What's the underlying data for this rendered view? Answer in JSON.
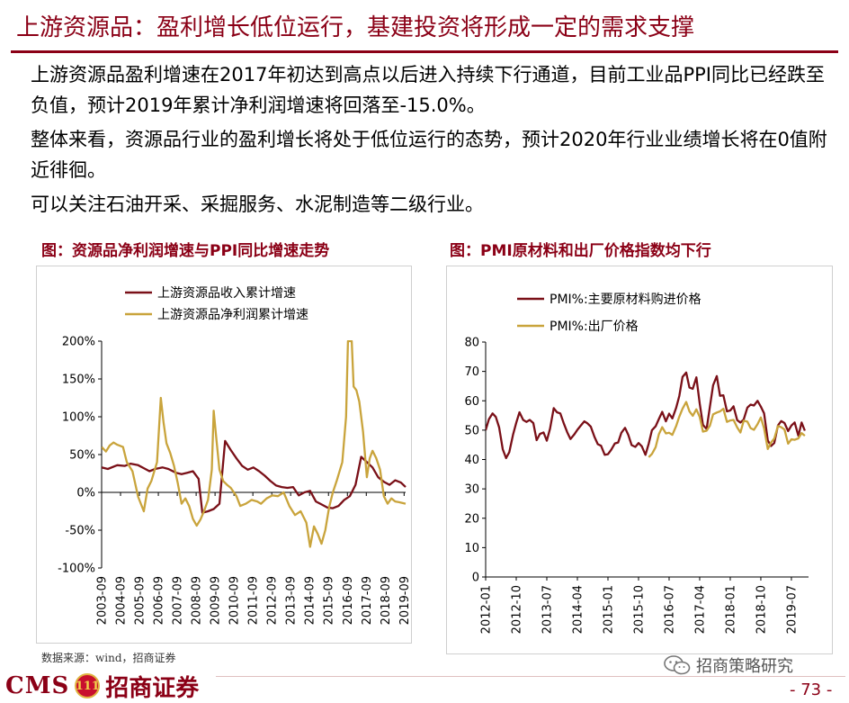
{
  "header": {
    "title": "上游资源品：盈利增长低位运行，基建投资将形成一定的需求支撑"
  },
  "bullets": [
    "上游资源品盈利增速在2017年初达到高点以后进入持续下行通道，目前工业品PPI同比已经跌至负值，预计2019年累计净利润增速将回落至-15.0%。",
    "整体来看，资源品行业的盈利增长将处于低位运行的态势，预计2020年行业业绩增长将在0值附近徘徊。",
    "可以关注石油开采、采掘服务、水泥制造等二级行业。"
  ],
  "source": "数据来源：wind，招商证券",
  "footer": {
    "logo_cms": "CMS",
    "logo_emblem": "111",
    "logo_cn": "招商证券",
    "wechat": "招商策略研究",
    "page_number": "- 73 -"
  },
  "colors": {
    "brand": "#8b0016",
    "series_dark": "#7a1018",
    "series_gold": "#c9a43c"
  },
  "chart_data": [
    {
      "type": "line",
      "figure_title": "图：资源品净利润增速与PPI同比增速走势",
      "ylim": [
        -100,
        200
      ],
      "yticks": [
        -100,
        -50,
        0,
        50,
        100,
        150,
        200
      ],
      "ytick_labels": [
        "-100%",
        "-50%",
        "0%",
        "50%",
        "100%",
        "150%",
        "200%"
      ],
      "xlim": [
        2003.67,
        2019.75
      ],
      "xtick_labels": [
        "2003-09",
        "2004-09",
        "2005-09",
        "2006-09",
        "2007-09",
        "2008-09",
        "2009-09",
        "2010-09",
        "2011-09",
        "2012-09",
        "2013-09",
        "2014-09",
        "2015-09",
        "2016-09",
        "2017-09",
        "2018-09",
        "2019-09"
      ],
      "xticks": [
        2003.67,
        2004.67,
        2005.67,
        2006.67,
        2007.67,
        2008.67,
        2009.67,
        2010.67,
        2011.67,
        2012.67,
        2013.67,
        2014.67,
        2015.67,
        2016.67,
        2017.67,
        2018.67,
        2019.67
      ],
      "legend_position": "top-left",
      "series": [
        {
          "name": "上游资源品收入累计增速",
          "color": "#7a1018",
          "x": [
            2003.67,
            2004.0,
            2004.5,
            2004.9,
            2005.2,
            2005.6,
            2005.9,
            2006.2,
            2006.5,
            2006.9,
            2007.2,
            2007.6,
            2007.9,
            2008.2,
            2008.5,
            2008.8,
            2009.0,
            2009.3,
            2009.6,
            2009.9,
            2010.2,
            2010.5,
            2010.8,
            2011.1,
            2011.4,
            2011.7,
            2012.0,
            2012.3,
            2012.6,
            2012.9,
            2013.2,
            2013.5,
            2013.8,
            2014.1,
            2014.4,
            2014.7,
            2015.0,
            2015.3,
            2015.6,
            2015.9,
            2016.2,
            2016.5,
            2016.8,
            2017.1,
            2017.4,
            2017.7,
            2018.0,
            2018.3,
            2018.6,
            2018.9,
            2019.2,
            2019.5,
            2019.75
          ],
          "y": [
            33,
            31,
            36,
            35,
            38,
            36,
            32,
            28,
            31,
            33,
            31,
            26,
            24,
            26,
            28,
            18,
            -27,
            -25,
            -22,
            -15,
            68,
            56,
            45,
            35,
            30,
            33,
            28,
            22,
            15,
            9,
            7,
            6,
            7,
            -4,
            0,
            2,
            -12,
            -16,
            -20,
            -21,
            -18,
            -10,
            -5,
            10,
            47,
            40,
            33,
            20,
            14,
            10,
            16,
            13,
            7
          ]
        },
        {
          "name": "上游资源品净利润累计增速",
          "color": "#c9a43c",
          "x": [
            2003.67,
            2003.9,
            2004.1,
            2004.3,
            2004.5,
            2004.8,
            2005.0,
            2005.3,
            2005.6,
            2005.9,
            2006.1,
            2006.3,
            2006.6,
            2006.8,
            2006.95,
            2007.1,
            2007.3,
            2007.5,
            2007.7,
            2007.9,
            2008.1,
            2008.3,
            2008.5,
            2008.7,
            2008.9,
            2009.1,
            2009.3,
            2009.5,
            2009.6,
            2009.75,
            2009.9,
            2010.1,
            2010.3,
            2010.5,
            2010.8,
            2011.0,
            2011.3,
            2011.6,
            2011.9,
            2012.1,
            2012.4,
            2012.7,
            2013.0,
            2013.3,
            2013.6,
            2013.9,
            2014.2,
            2014.5,
            2014.7,
            2014.9,
            2015.1,
            2015.3,
            2015.5,
            2015.7,
            2015.9,
            2016.1,
            2016.4,
            2016.6,
            2016.7,
            2016.8,
            2016.9,
            2017.0,
            2017.15,
            2017.3,
            2017.5,
            2017.7,
            2017.85,
            2018.0,
            2018.2,
            2018.4,
            2018.6,
            2018.8,
            2019.0,
            2019.2,
            2019.4,
            2019.75
          ],
          "y": [
            60,
            54,
            62,
            66,
            63,
            60,
            40,
            28,
            -6,
            -25,
            5,
            15,
            40,
            125,
            92,
            65,
            52,
            35,
            12,
            -15,
            -8,
            -18,
            -35,
            -44,
            -36,
            -24,
            -10,
            30,
            108,
            68,
            30,
            15,
            10,
            6,
            -5,
            -18,
            -15,
            -10,
            -12,
            -15,
            -8,
            -4,
            -5,
            0,
            -18,
            -30,
            -25,
            -40,
            -72,
            -45,
            -55,
            -68,
            -50,
            -20,
            0,
            15,
            40,
            100,
            200,
            200,
            200,
            140,
            135,
            120,
            80,
            20,
            45,
            55,
            45,
            30,
            -5,
            -15,
            -8,
            -12,
            -13,
            -15
          ]
        }
      ]
    },
    {
      "type": "line",
      "figure_title": "图：PMI原材料和出厂价格指数均下行",
      "ylim": [
        0,
        80
      ],
      "yticks": [
        0,
        10,
        20,
        30,
        40,
        50,
        60,
        70,
        80
      ],
      "ytick_labels": [
        "0",
        "10",
        "20",
        "30",
        "40",
        "50",
        "60",
        "70",
        "80"
      ],
      "xlim": [
        2012.0,
        2019.92
      ],
      "xtick_labels": [
        "2012-01",
        "2012-10",
        "2013-07",
        "2014-04",
        "2015-01",
        "2015-10",
        "2016-07",
        "2017-04",
        "2018-01",
        "2018-10",
        "2019-07"
      ],
      "xticks": [
        2012.0,
        2012.75,
        2013.5,
        2014.25,
        2015.0,
        2015.75,
        2016.5,
        2017.25,
        2018.0,
        2018.75,
        2019.5
      ],
      "legend_position": "top-left",
      "series": [
        {
          "name": "PMI%:主要原材料购进价格",
          "color": "#7a1018",
          "x": [
            2012.0,
            2012.08,
            2012.17,
            2012.25,
            2012.33,
            2012.42,
            2012.5,
            2012.58,
            2012.67,
            2012.75,
            2012.83,
            2012.92,
            2013.0,
            2013.08,
            2013.17,
            2013.25,
            2013.33,
            2013.42,
            2013.5,
            2013.58,
            2013.67,
            2013.75,
            2013.83,
            2013.92,
            2014.0,
            2014.08,
            2014.17,
            2014.25,
            2014.33,
            2014.42,
            2014.5,
            2014.58,
            2014.67,
            2014.75,
            2014.83,
            2014.92,
            2015.0,
            2015.08,
            2015.17,
            2015.25,
            2015.33,
            2015.42,
            2015.5,
            2015.58,
            2015.67,
            2015.75,
            2015.83,
            2015.92,
            2016.0,
            2016.08,
            2016.17,
            2016.25,
            2016.33,
            2016.42,
            2016.5,
            2016.58,
            2016.67,
            2016.75,
            2016.83,
            2016.92,
            2017.0,
            2017.08,
            2017.17,
            2017.25,
            2017.33,
            2017.42,
            2017.5,
            2017.58,
            2017.67,
            2017.75,
            2017.83,
            2017.92,
            2018.0,
            2018.08,
            2018.17,
            2018.25,
            2018.33,
            2018.42,
            2018.5,
            2018.58,
            2018.67,
            2018.75,
            2018.83,
            2018.92,
            2019.0,
            2019.08,
            2019.17,
            2019.25,
            2019.33,
            2019.42,
            2019.5,
            2019.58,
            2019.67,
            2019.75,
            2019.83
          ],
          "y": [
            50.0,
            53.7,
            55.7,
            54.5,
            50.9,
            43.5,
            40.5,
            42.5,
            48.4,
            52.5,
            56.1,
            53.5,
            52.8,
            53.5,
            52.4,
            46.6,
            48.7,
            49.2,
            46.4,
            50.5,
            57.5,
            56.1,
            55.7,
            52.2,
            49.3,
            47.0,
            48.5,
            50.1,
            51.5,
            53.0,
            52.3,
            51.2,
            47.7,
            45.2,
            44.7,
            41.6,
            41.8,
            43.3,
            45.5,
            45.8,
            49.1,
            50.8,
            48.4,
            44.9,
            44.3,
            45.6,
            44.5,
            41.6,
            45.4,
            50.0,
            51.3,
            53.8,
            56.2,
            53.0,
            55.6,
            54.0,
            57.5,
            61.6,
            68.1,
            69.6,
            64.5,
            64.1,
            68.0,
            59.1,
            51.8,
            50.4,
            57.9,
            65.3,
            68.4,
            61.7,
            61.9,
            56.4,
            56.7,
            58.1,
            53.4,
            52.6,
            53.6,
            57.7,
            58.7,
            58.4,
            60.0,
            58.0,
            55.7,
            46.5,
            44.6,
            45.6,
            51.6,
            53.1,
            52.4,
            49.7,
            51.6,
            52.6,
            48.1,
            52.6,
            49.8
          ]
        },
        {
          "name": "PMI%:出厂价格",
          "color": "#c9a43c",
          "x": [
            2016.0,
            2016.08,
            2016.17,
            2016.25,
            2016.33,
            2016.42,
            2016.5,
            2016.58,
            2016.67,
            2016.75,
            2016.83,
            2016.92,
            2017.0,
            2017.08,
            2017.17,
            2017.25,
            2017.33,
            2017.42,
            2017.5,
            2017.58,
            2017.67,
            2017.75,
            2017.83,
            2017.92,
            2018.0,
            2018.08,
            2018.17,
            2018.25,
            2018.33,
            2018.42,
            2018.5,
            2018.58,
            2018.67,
            2018.75,
            2018.83,
            2018.92,
            2019.0,
            2019.08,
            2019.17,
            2019.25,
            2019.33,
            2019.42,
            2019.5,
            2019.58,
            2019.67,
            2019.75,
            2019.83
          ],
          "y": [
            40.8,
            41.9,
            44.2,
            48.6,
            51.0,
            48.9,
            49.1,
            48.4,
            51.3,
            54.6,
            57.3,
            59.6,
            56.4,
            54.9,
            57.1,
            54.5,
            49.5,
            49.8,
            51.5,
            55.4,
            56.0,
            56.4,
            57.3,
            52.8,
            53.3,
            53.5,
            50.9,
            49.2,
            53.2,
            52.9,
            50.7,
            50.1,
            52.0,
            54.3,
            50.6,
            43.6,
            45.8,
            47.1,
            51.4,
            51.0,
            50.2,
            45.4,
            46.9,
            46.7,
            47.2,
            49.0,
            48.1
          ]
        }
      ]
    }
  ]
}
